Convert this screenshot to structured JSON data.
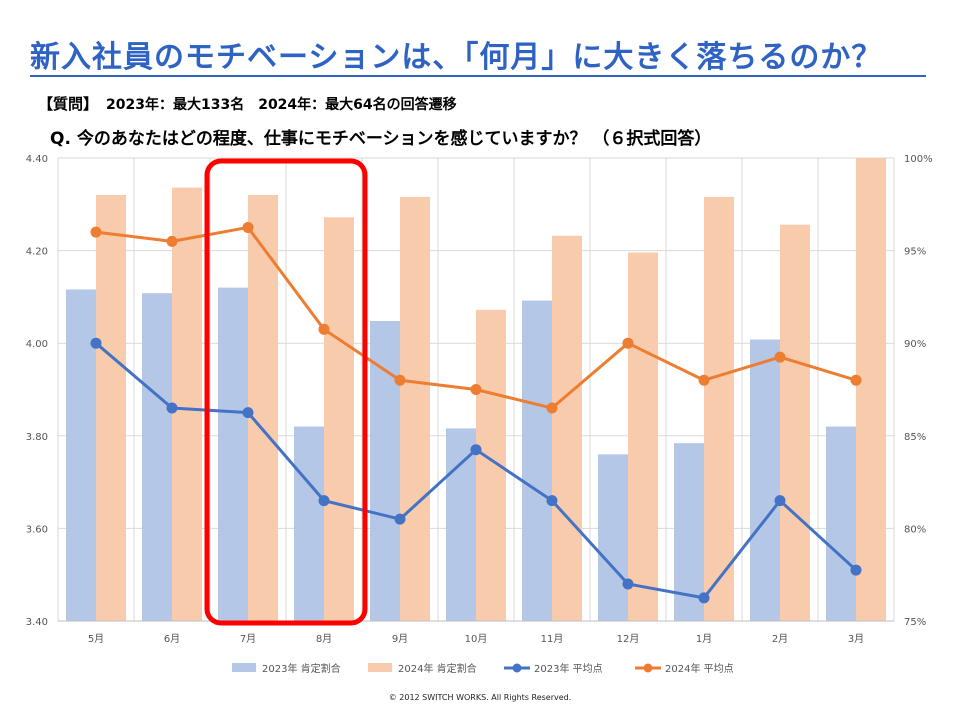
{
  "header": {
    "title": "新入社員のモチベーションは、「何月」に大きく落ちるのか？",
    "question_tag": "【質問】",
    "question_meta": "2023年：最大133名　2024年：最大64名の回答遷移",
    "question_text": "Q. 今のあなたはどの程度、仕事にモチベーションを感じていますか？ （６択式回答）"
  },
  "footer": {
    "copyright": "© 2012 SWITCH WORKS. All Rights Reserved."
  },
  "chart_data": {
    "type": "bar",
    "categories": [
      "5月",
      "6月",
      "7月",
      "8月",
      "9月",
      "10月",
      "11月",
      "12月",
      "1月",
      "2月",
      "3月"
    ],
    "y_left": {
      "ylim": [
        3.4,
        4.4
      ],
      "ticks": [
        "3.40",
        "3.60",
        "3.80",
        "4.00",
        "4.20",
        "4.40"
      ]
    },
    "y_right": {
      "ylim": [
        75,
        100
      ],
      "ticks": [
        "75%",
        "80%",
        "85%",
        "90%",
        "95%",
        "100%"
      ]
    },
    "series": [
      {
        "name": "2023年 肯定割合",
        "kind": "bar",
        "axis": "right",
        "color": "#b4c7e7",
        "values": [
          92.9,
          92.7,
          93.0,
          85.5,
          91.2,
          85.4,
          92.3,
          84.0,
          84.6,
          90.2,
          85.5
        ]
      },
      {
        "name": "2024年 肯定割合",
        "kind": "bar",
        "axis": "right",
        "color": "#f8cbad",
        "values": [
          98.0,
          98.4,
          98.0,
          96.8,
          97.9,
          91.8,
          95.8,
          94.9,
          97.9,
          96.4,
          100.0
        ]
      },
      {
        "name": "2023年 平均点",
        "kind": "line",
        "axis": "left",
        "color": "#4472c4",
        "values": [
          4.0,
          3.86,
          3.85,
          3.66,
          3.62,
          3.77,
          3.66,
          3.48,
          3.45,
          3.66,
          3.51
        ]
      },
      {
        "name": "2024年 平均点",
        "kind": "line",
        "axis": "left",
        "color": "#ed7d31",
        "values": [
          4.24,
          4.22,
          4.25,
          4.03,
          3.92,
          3.9,
          3.86,
          4.0,
          3.92,
          3.97,
          3.92
        ]
      }
    ],
    "highlight": {
      "categories": [
        "7月",
        "8月"
      ],
      "color": "#ff0000"
    },
    "grid": true,
    "legend": "bottom"
  }
}
